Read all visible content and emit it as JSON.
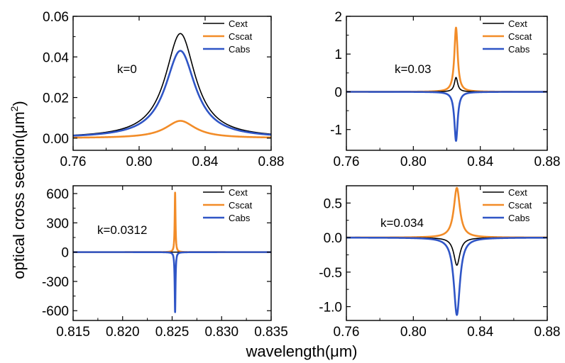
{
  "figure": {
    "ylabel": "optical cross section(μm",
    "ylabel_sup": "2",
    "ylabel_close": ")",
    "xlabel": "wavelength(μm)"
  },
  "colors": {
    "Cext": "#000000",
    "Cscat": "#f28c28",
    "Cabs": "#2f55c6"
  },
  "chart_data": [
    {
      "type": "line",
      "annotation": "k=0",
      "xlim": [
        0.76,
        0.88
      ],
      "ylim": [
        -0.006,
        0.06
      ],
      "xticks": [
        "0.76",
        "0.80",
        "0.84",
        "0.88"
      ],
      "yticks": [
        "0.00",
        "0.02",
        "0.04",
        "0.06"
      ],
      "yticks_values": [
        0.0,
        0.02,
        0.04,
        0.06
      ],
      "legend": [
        "Cext",
        "Cscat",
        "Cabs"
      ],
      "legend_position": "top-right",
      "series": [
        {
          "name": "Cext",
          "peak_x": 0.825,
          "peak_y": 0.0515,
          "width": 0.011
        },
        {
          "name": "Cscat",
          "peak_x": 0.825,
          "peak_y": 0.0085,
          "width": 0.011
        },
        {
          "name": "Cabs",
          "peak_x": 0.825,
          "peak_y": 0.043,
          "width": 0.011
        }
      ]
    },
    {
      "type": "line",
      "annotation": "k=0.03",
      "xlim": [
        0.76,
        0.88
      ],
      "ylim": [
        -1.55,
        2.0
      ],
      "xticks": [
        "0.76",
        "0.80",
        "0.84",
        "0.88"
      ],
      "yticks": [
        "-1",
        "0",
        "1",
        "2"
      ],
      "yticks_values": [
        -1,
        0,
        1,
        2
      ],
      "legend": [
        "Cext",
        "Cscat",
        "Cabs"
      ],
      "legend_position": "top-right",
      "series": [
        {
          "name": "Cext",
          "peak_x": 0.8255,
          "peak_y": 0.38,
          "width": 0.0012
        },
        {
          "name": "Cscat",
          "peak_x": 0.8255,
          "peak_y": 1.7,
          "width": 0.0012
        },
        {
          "name": "Cabs",
          "peak_x": 0.8255,
          "peak_y": -1.3,
          "width": 0.0012
        }
      ]
    },
    {
      "type": "line",
      "annotation": "k=0.0312",
      "xlim": [
        0.815,
        0.835
      ],
      "ylim": [
        -700,
        680
      ],
      "xticks": [
        "0.815",
        "0.820",
        "0.825",
        "0.830",
        "0.835"
      ],
      "yticks": [
        "-600",
        "-300",
        "0",
        "300",
        "600"
      ],
      "yticks_values": [
        -600,
        -300,
        0,
        300,
        600
      ],
      "legend": [
        "Cext",
        "Cscat",
        "Cabs"
      ],
      "legend_position": "top-right",
      "series": [
        {
          "name": "Cext",
          "peak_x": 0.8253,
          "peak_y": 0.0,
          "width": 5e-05
        },
        {
          "name": "Cscat",
          "peak_x": 0.8253,
          "peak_y": 610,
          "width": 5e-05
        },
        {
          "name": "Cabs",
          "peak_x": 0.8253,
          "peak_y": -615,
          "width": 5e-05
        }
      ]
    },
    {
      "type": "line",
      "annotation": "k=0.034",
      "xlim": [
        0.76,
        0.88
      ],
      "ylim": [
        -1.2,
        0.75
      ],
      "xticks": [
        "0.76",
        "0.80",
        "0.84",
        "0.88"
      ],
      "yticks": [
        "-1.0",
        "-0.5",
        "0.0",
        "0.5"
      ],
      "yticks_values": [
        -1.0,
        -0.5,
        0.0,
        0.5
      ],
      "legend": [
        "Cext",
        "Cscat",
        "Cabs"
      ],
      "legend_position": "top-right",
      "series": [
        {
          "name": "Cext",
          "peak_x": 0.826,
          "peak_y": -0.4,
          "width": 0.0022
        },
        {
          "name": "Cscat",
          "peak_x": 0.826,
          "peak_y": 0.72,
          "width": 0.0022
        },
        {
          "name": "Cabs",
          "peak_x": 0.826,
          "peak_y": -1.12,
          "width": 0.0022
        }
      ]
    }
  ]
}
